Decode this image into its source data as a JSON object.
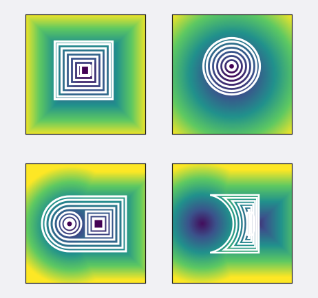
{
  "chart_data": {
    "type": "heatmap",
    "colormap": "viridis",
    "colormap_stops": [
      "#440154",
      "#3b528b",
      "#21918c",
      "#5ec962",
      "#fde725"
    ],
    "contour_color": "#ffffff",
    "grid": false,
    "panels": [
      {
        "field": "square-distance",
        "inner_shape": "square",
        "contour_levels": [
          0.02,
          0.08,
          0.16,
          0.24,
          0.32,
          0.4,
          0.48
        ],
        "color_range": [
          0,
          0.55
        ]
      },
      {
        "field": "circle-distance",
        "inner_shape": "circle",
        "contour_levels": [
          0.02,
          0.08,
          0.16,
          0.24,
          0.32,
          0.4,
          0.48
        ],
        "color_range": [
          0,
          0.55
        ]
      },
      {
        "field": "circle-and-square-distance",
        "inner_shape": "circle+square",
        "contour_levels": [
          0.02,
          0.06,
          0.1,
          0.14,
          0.18,
          0.22,
          0.26
        ],
        "color_range": [
          0,
          0.55
        ]
      },
      {
        "field": "crescent-distance",
        "inner_shape": "crescent",
        "contour_levels": [
          0.02,
          0.05,
          0.08,
          0.11,
          0.14,
          0.17,
          0.2
        ],
        "color_range": [
          0,
          0.55
        ]
      }
    ]
  }
}
